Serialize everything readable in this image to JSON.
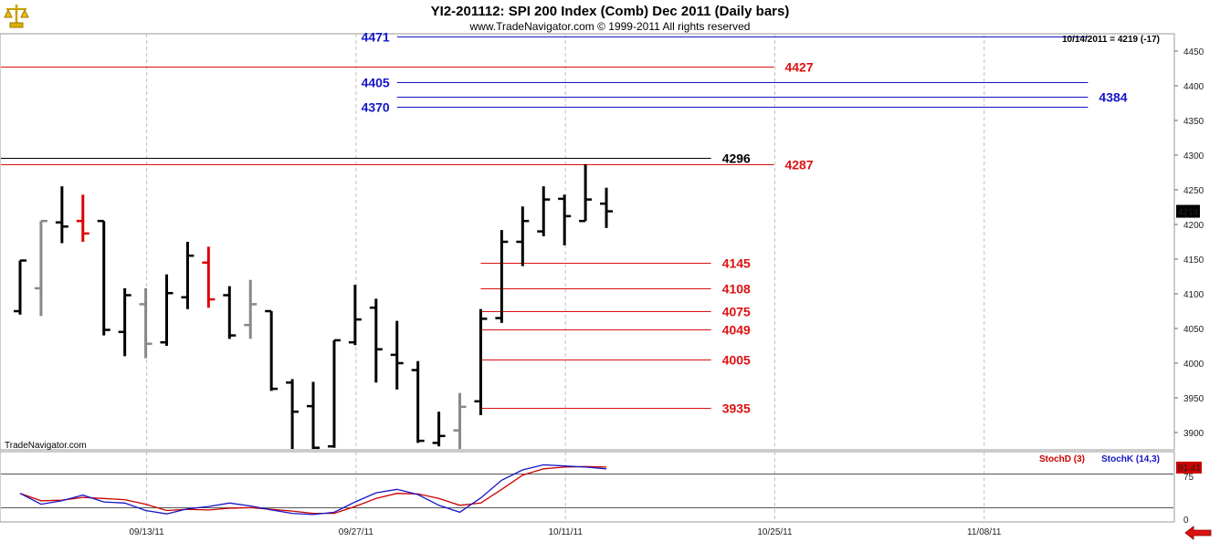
{
  "header": {
    "title": "YI2-201112:  SPI 200 Index (Comb) Dec 2011  (Daily bars)",
    "copyright": "www.TradeNavigator.com © 1999-2011 All rights reserved",
    "last_readout": "10/14/2011 = 4219 (-17)",
    "watermark": "TradeNavigator.com"
  },
  "colors": {
    "up_bar": "#000000",
    "neutral_bar": "#888888",
    "down_bar": "#dd0000",
    "blue_level": "#1414c8",
    "red_level": "#dd1111",
    "black_level": "#000000",
    "stoch_d": "#cc0000",
    "stoch_k": "#1414c8",
    "grid": "#c0c0c0"
  },
  "icons": {
    "logo": "gold-scales-icon",
    "nav": "red-left-arrow-icon"
  },
  "chart_data": [
    {
      "type": "ohlc",
      "title": "YI2-201112:  SPI 200 Index (Comb) Dec 2011  (Daily bars)",
      "ylim": [
        3875,
        4475
      ],
      "yticks": [
        3900,
        3950,
        4000,
        4050,
        4100,
        4150,
        4200,
        4250,
        4300,
        4350,
        4400,
        4450
      ],
      "x_date_labels": [
        {
          "label": "09/13/11",
          "bar": 6
        },
        {
          "label": "09/27/11",
          "bar": 16
        },
        {
          "label": "10/11/11",
          "bar": 26
        },
        {
          "label": "10/25/11",
          "bar": 36
        },
        {
          "label": "11/08/11",
          "bar": 46
        }
      ],
      "last_price_label": "4219",
      "bars": [
        {
          "o": 4075,
          "h": 4148,
          "l": 4070,
          "c": 4148,
          "color": "black"
        },
        {
          "o": 4108,
          "h": 4205,
          "l": 4068,
          "c": 4205,
          "color": "gray"
        },
        {
          "o": 4203,
          "h": 4255,
          "l": 4173,
          "c": 4197,
          "color": "black"
        },
        {
          "o": 4205,
          "h": 4243,
          "l": 4175,
          "c": 4187,
          "color": "red"
        },
        {
          "o": 4205,
          "h": 4205,
          "l": 4040,
          "c": 4048,
          "color": "black"
        },
        {
          "o": 4045,
          "h": 4108,
          "l": 4010,
          "c": 4098,
          "color": "black"
        },
        {
          "o": 4085,
          "h": 4108,
          "l": 4007,
          "c": 4028,
          "color": "gray"
        },
        {
          "o": 4030,
          "h": 4128,
          "l": 4025,
          "c": 4101,
          "color": "black"
        },
        {
          "o": 4095,
          "h": 4175,
          "l": 4078,
          "c": 4155,
          "color": "black"
        },
        {
          "o": 4145,
          "h": 4168,
          "l": 4080,
          "c": 4092,
          "color": "red"
        },
        {
          "o": 4098,
          "h": 4111,
          "l": 4035,
          "c": 4040,
          "color": "black"
        },
        {
          "o": 4055,
          "h": 4120,
          "l": 4035,
          "c": 4085,
          "color": "gray"
        },
        {
          "o": 4075,
          "h": 4075,
          "l": 3960,
          "c": 3963,
          "color": "black"
        },
        {
          "o": 3972,
          "h": 3977,
          "l": 3875,
          "c": 3930,
          "color": "black"
        },
        {
          "o": 3938,
          "h": 3973,
          "l": 3875,
          "c": 3878,
          "color": "black"
        },
        {
          "o": 3880,
          "h": 4033,
          "l": 3878,
          "c": 4033,
          "color": "black"
        },
        {
          "o": 4030,
          "h": 4113,
          "l": 4026,
          "c": 4063,
          "color": "black"
        },
        {
          "o": 4080,
          "h": 4093,
          "l": 3972,
          "c": 4020,
          "color": "black"
        },
        {
          "o": 4012,
          "h": 4061,
          "l": 3962,
          "c": 4000,
          "color": "black"
        },
        {
          "o": 3990,
          "h": 4003,
          "l": 3885,
          "c": 3888,
          "color": "black"
        },
        {
          "o": 3885,
          "h": 3930,
          "l": 3880,
          "c": 3895,
          "color": "black"
        },
        {
          "o": 3903,
          "h": 3957,
          "l": 3875,
          "c": 3937,
          "color": "gray"
        },
        {
          "o": 3945,
          "h": 4078,
          "l": 3925,
          "c": 4064,
          "color": "black"
        },
        {
          "o": 4065,
          "h": 4192,
          "l": 4058,
          "c": 4175,
          "color": "black"
        },
        {
          "o": 4175,
          "h": 4226,
          "l": 4140,
          "c": 4205,
          "color": "black"
        },
        {
          "o": 4190,
          "h": 4255,
          "l": 4183,
          "c": 4236,
          "color": "black"
        },
        {
          "o": 4237,
          "h": 4243,
          "l": 4170,
          "c": 4212,
          "color": "black"
        },
        {
          "o": 4205,
          "h": 4287,
          "l": 4205,
          "c": 4236,
          "color": "black"
        },
        {
          "o": 4230,
          "h": 4253,
          "l": 4195,
          "c": 4219,
          "color": "black"
        }
      ],
      "levels": [
        {
          "value": 4471,
          "label": "4471",
          "color": "blue",
          "from_bar": 18,
          "to_bar": 51,
          "label_side": "left"
        },
        {
          "value": 4427,
          "label": "4427",
          "color": "red",
          "from_bar": 0,
          "to_bar": 36,
          "label_side": "right"
        },
        {
          "value": 4405,
          "label": "4405",
          "color": "blue",
          "from_bar": 18,
          "to_bar": 51,
          "label_side": "left"
        },
        {
          "value": 4384,
          "label": "4384",
          "color": "blue",
          "from_bar": 18,
          "to_bar": 51,
          "label_side": "right"
        },
        {
          "value": 4370,
          "label": "4370",
          "color": "blue",
          "from_bar": 18,
          "to_bar": 51,
          "label_side": "left"
        },
        {
          "value": 4296,
          "label": "4296",
          "color": "black",
          "from_bar": 0,
          "to_bar": 33,
          "label_side": "right"
        },
        {
          "value": 4287,
          "label": "4287",
          "color": "red",
          "from_bar": 0,
          "to_bar": 36,
          "label_side": "right"
        },
        {
          "value": 4145,
          "label": "4145",
          "color": "red",
          "from_bar": 22,
          "to_bar": 33,
          "label_side": "right"
        },
        {
          "value": 4108,
          "label": "4108",
          "color": "red",
          "from_bar": 22,
          "to_bar": 33,
          "label_side": "right"
        },
        {
          "value": 4075,
          "label": "4075",
          "color": "red",
          "from_bar": 22,
          "to_bar": 33,
          "label_side": "right"
        },
        {
          "value": 4049,
          "label": "4049",
          "color": "red",
          "from_bar": 22,
          "to_bar": 33,
          "label_side": "right"
        },
        {
          "value": 4005,
          "label": "4005",
          "color": "red",
          "from_bar": 22,
          "to_bar": 33,
          "label_side": "right"
        },
        {
          "value": 3935,
          "label": "3935",
          "color": "red",
          "from_bar": 22,
          "to_bar": 33,
          "label_side": "right"
        }
      ]
    },
    {
      "type": "line",
      "ylim": [
        -5,
        118
      ],
      "yticks": [
        0,
        75
      ],
      "guide_lines": [
        20,
        80
      ],
      "last_value_label": "91.41",
      "series": [
        {
          "name": "StochD (3)",
          "color": "red",
          "values": [
            45,
            32,
            33,
            38,
            36,
            34,
            26,
            15,
            17,
            16,
            19,
            20,
            17,
            14,
            10,
            10,
            22,
            36,
            45,
            44,
            36,
            24,
            28,
            52,
            77,
            88,
            91,
            92,
            91
          ]
        },
        {
          "name": "StochK (14,3)",
          "color": "blue",
          "values": [
            45,
            26,
            32,
            42,
            30,
            28,
            15,
            9,
            18,
            22,
            28,
            23,
            16,
            10,
            8,
            12,
            30,
            46,
            52,
            43,
            24,
            12,
            37,
            68,
            86,
            95,
            93,
            91,
            88
          ]
        }
      ]
    }
  ]
}
